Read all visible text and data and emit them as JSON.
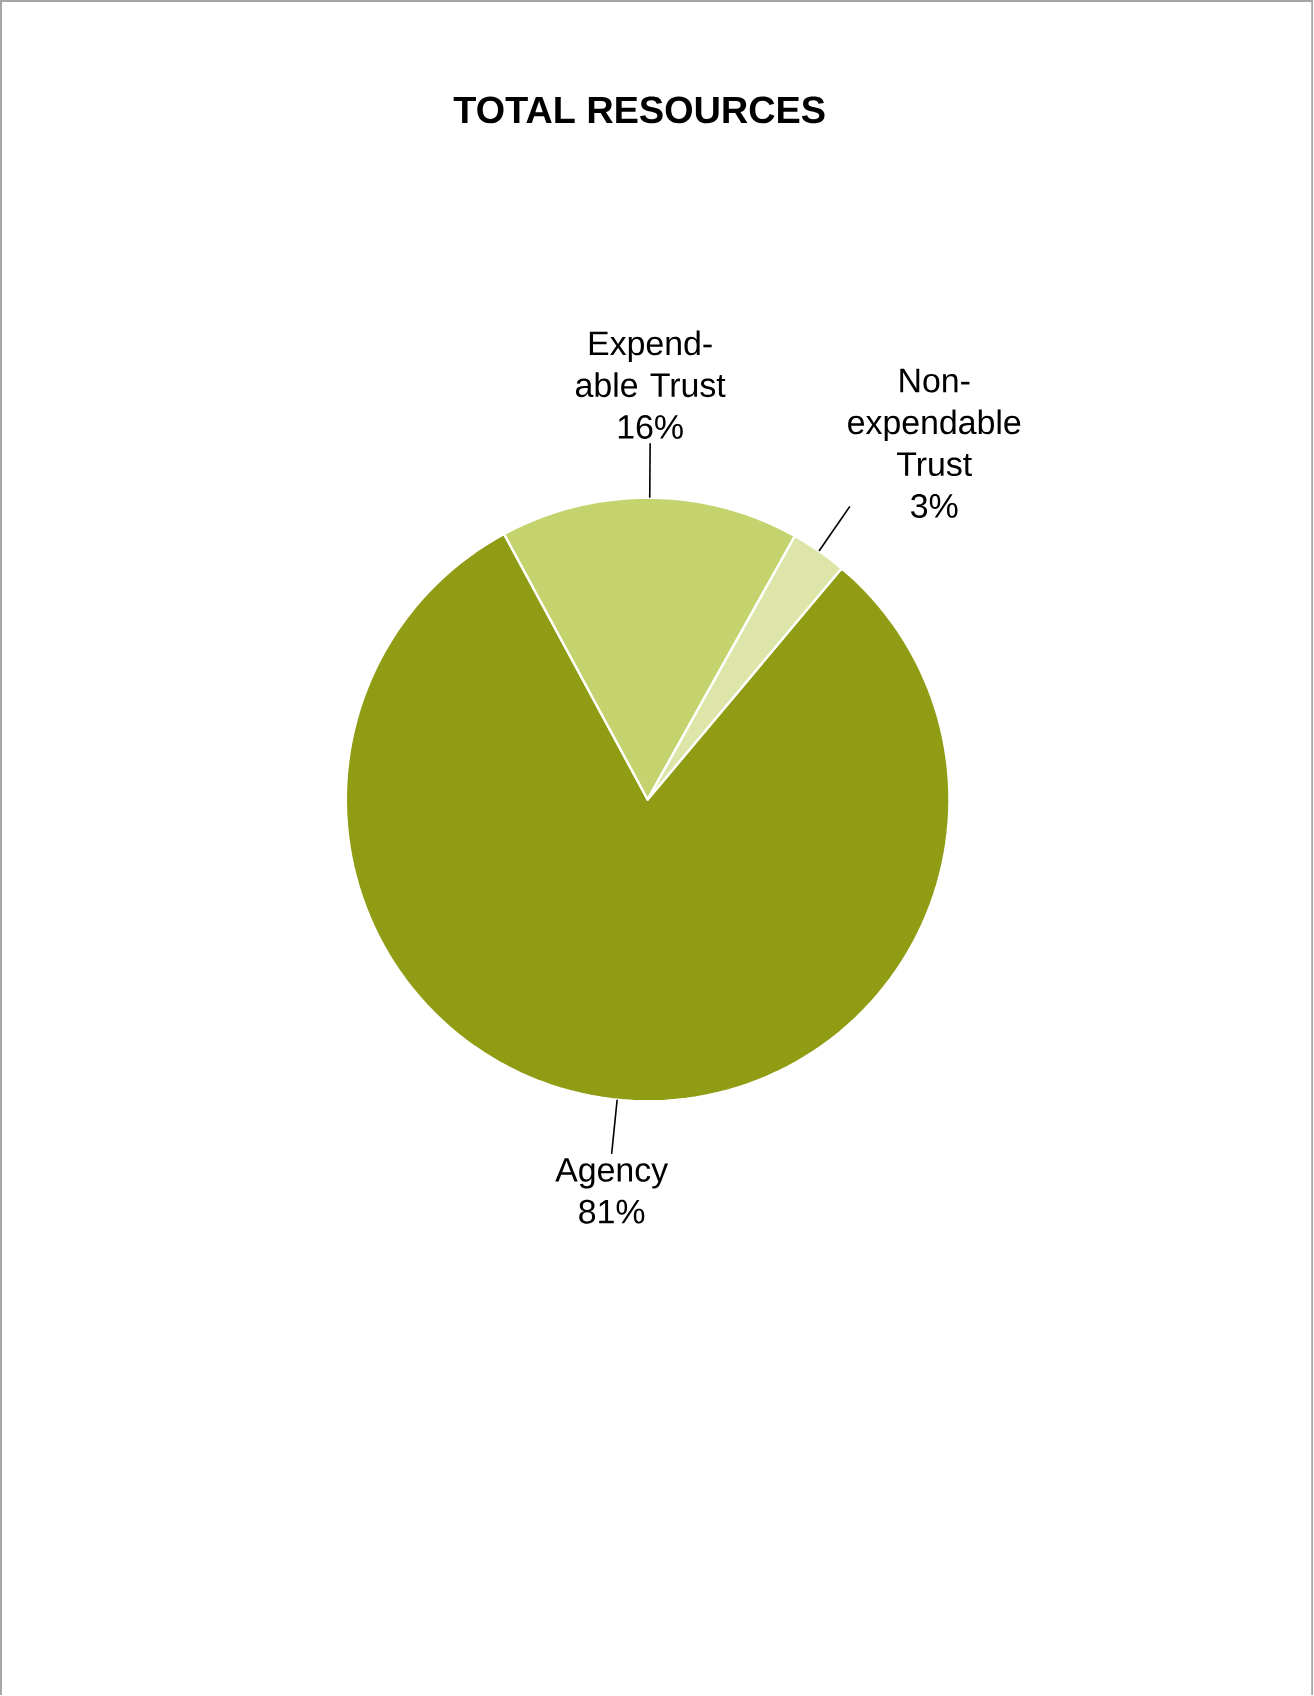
{
  "chart_data": {
    "type": "pie",
    "title": "TOTAL RESOURCES",
    "categories": [
      "Agency",
      "Expend-able Trust",
      "Non-expendable Trust"
    ],
    "values": [
      81,
      16,
      3
    ],
    "value_labels": [
      "81%",
      "16%",
      "3%"
    ],
    "colors": [
      "#8f9c14",
      "#c5d36e",
      "#dde5a8"
    ]
  }
}
